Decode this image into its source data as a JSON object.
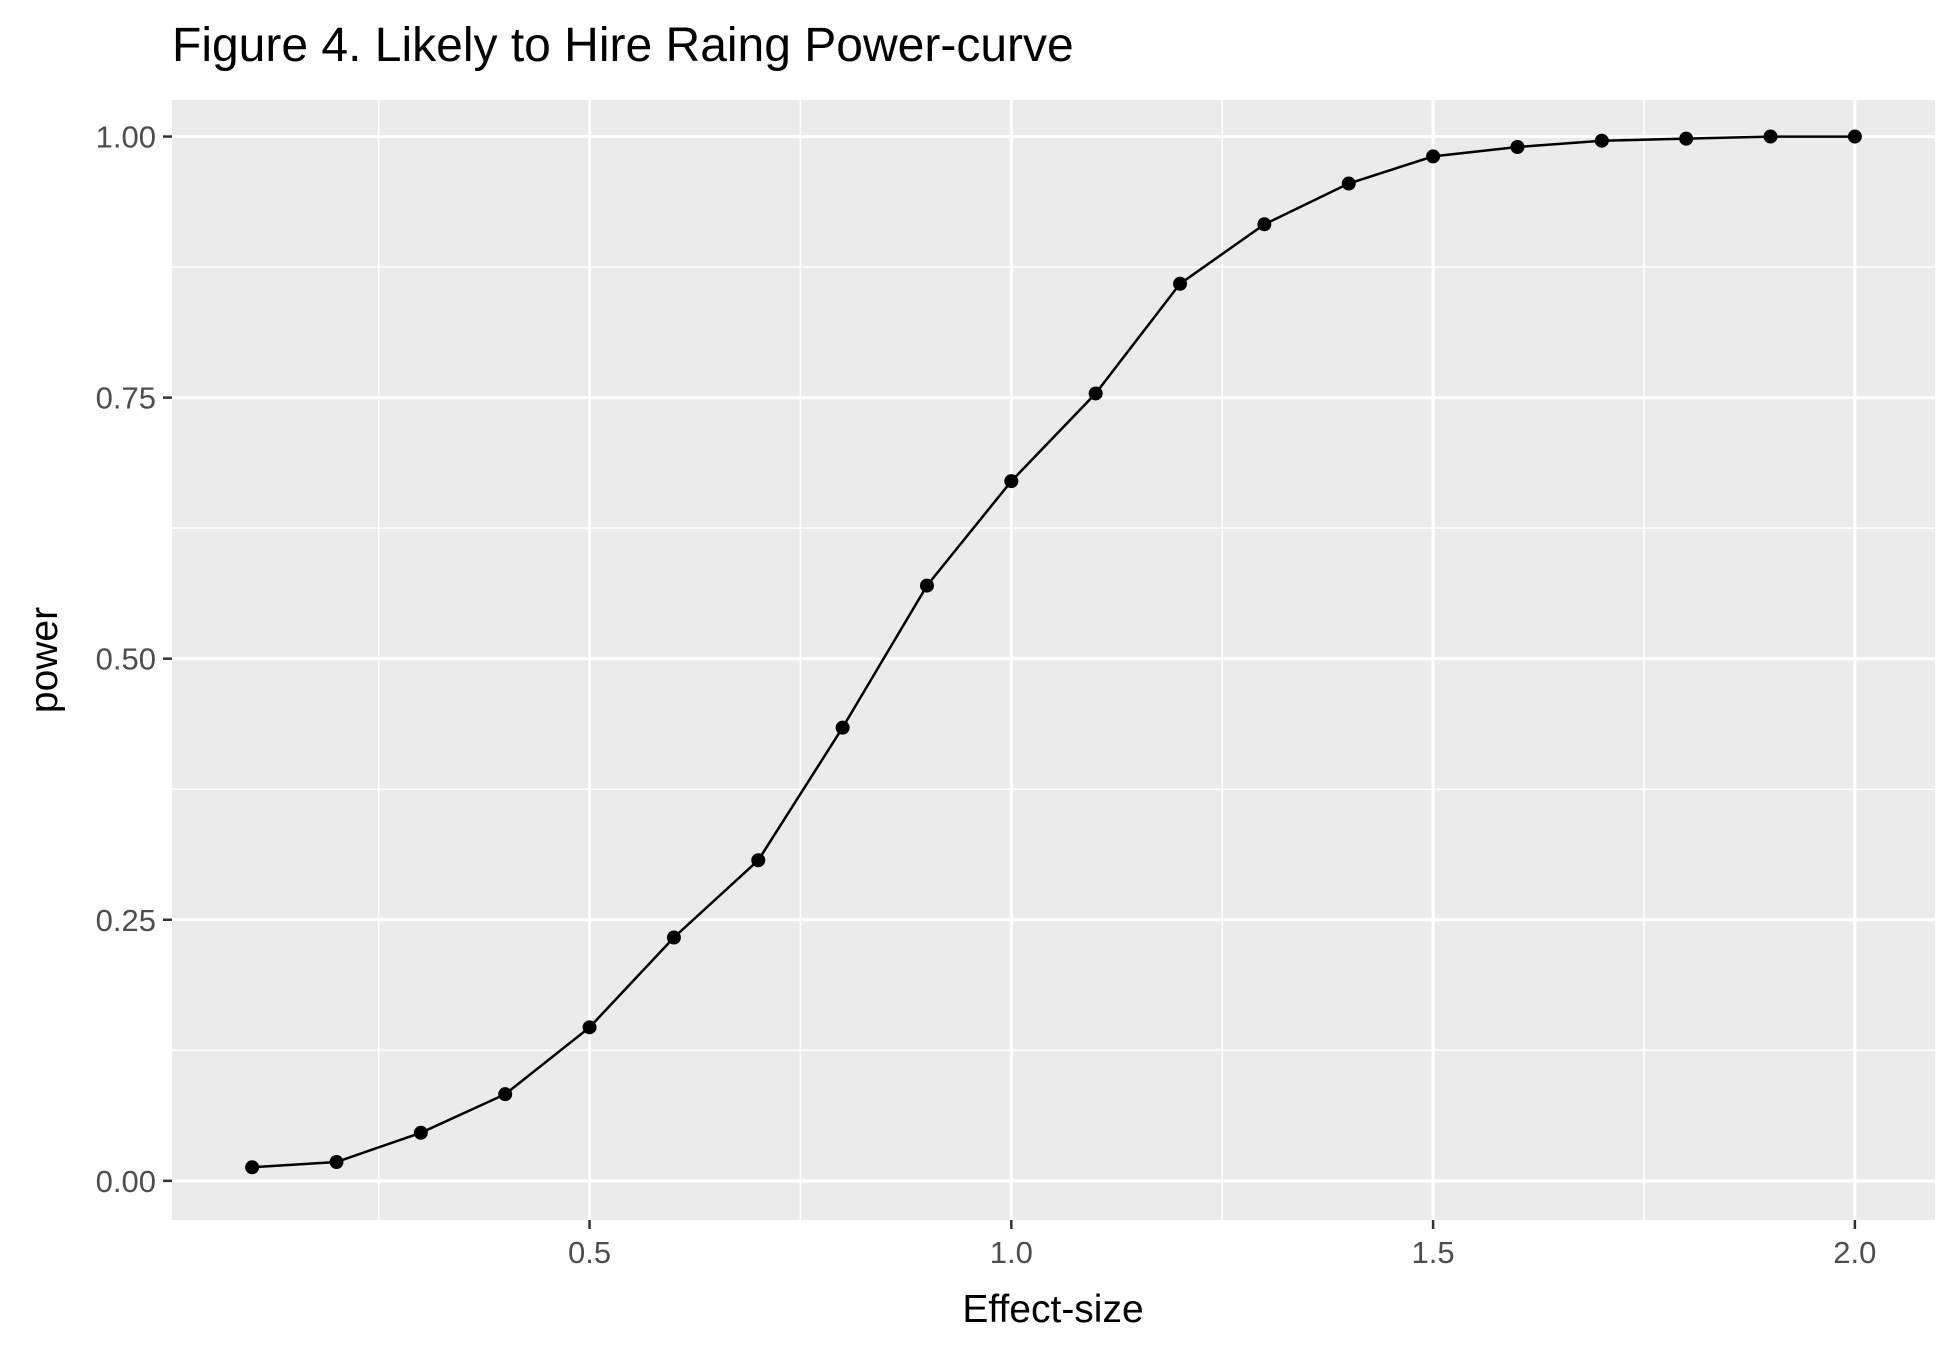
{
  "chart_data": {
    "type": "line",
    "title": "Figure 4. Likely to Hire Raing Power-curve",
    "xlabel": "Effect-size",
    "ylabel": "power",
    "xlim": [
      0.005,
      2.095
    ],
    "ylim": [
      -0.0375,
      1.035
    ],
    "x_ticks": [
      0.5,
      1.0,
      1.5,
      2.0
    ],
    "x_tick_labels": [
      "0.5",
      "1.0",
      "1.5",
      "2.0"
    ],
    "x_minor": [
      0.25,
      0.75,
      1.25,
      1.75
    ],
    "y_ticks": [
      0.0,
      0.25,
      0.5,
      0.75,
      1.0
    ],
    "y_tick_labels": [
      "0.00",
      "0.25",
      "0.50",
      "0.75",
      "1.00"
    ],
    "y_minor": [
      0.125,
      0.375,
      0.625,
      0.875
    ],
    "grid": true,
    "legend": "none",
    "colors": {
      "panel": "#ebebeb",
      "grid": "#ffffff",
      "line": "#000000",
      "tick": "#333333"
    },
    "series": [
      {
        "x": [
          0.1,
          0.2,
          0.3,
          0.4,
          0.5,
          0.6,
          0.7,
          0.8,
          0.9,
          1.0,
          1.1,
          1.2,
          1.3,
          1.4,
          1.5,
          1.6,
          1.7,
          1.8,
          1.9,
          2.0
        ],
        "values": [
          0.013,
          0.018,
          0.046,
          0.083,
          0.147,
          0.233,
          0.307,
          0.434,
          0.57,
          0.67,
          0.754,
          0.859,
          0.916,
          0.955,
          0.981,
          0.99,
          0.996,
          0.998,
          1.0,
          1.0
        ]
      }
    ]
  }
}
